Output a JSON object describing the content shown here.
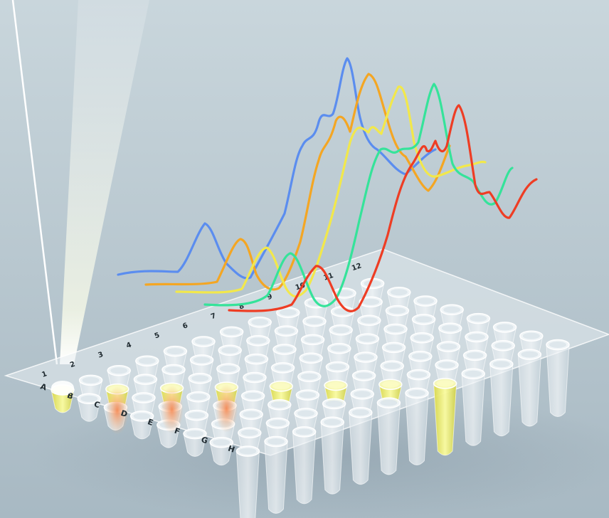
{
  "plate": {
    "column_labels": [
      "1",
      "2",
      "3",
      "4",
      "5",
      "6",
      "7",
      "8",
      "9",
      "10",
      "11",
      "12"
    ],
    "row_labels": [
      "A",
      "B",
      "C",
      "D",
      "E",
      "F",
      "G",
      "H"
    ]
  },
  "traces": [
    {
      "color": "#5b8def"
    },
    {
      "color": "#f4a623"
    },
    {
      "color": "#f2e84b"
    },
    {
      "color": "#35e39a"
    },
    {
      "color": "#ee3d24"
    }
  ],
  "colors": {
    "background_top": "#c4d1d8",
    "background_bottom": "#a9bac4",
    "plate": "#e8eef2",
    "filled_tube": "#eef07a",
    "orange_tint": "#f4a07a",
    "light_beam": "#f6f9e2"
  }
}
